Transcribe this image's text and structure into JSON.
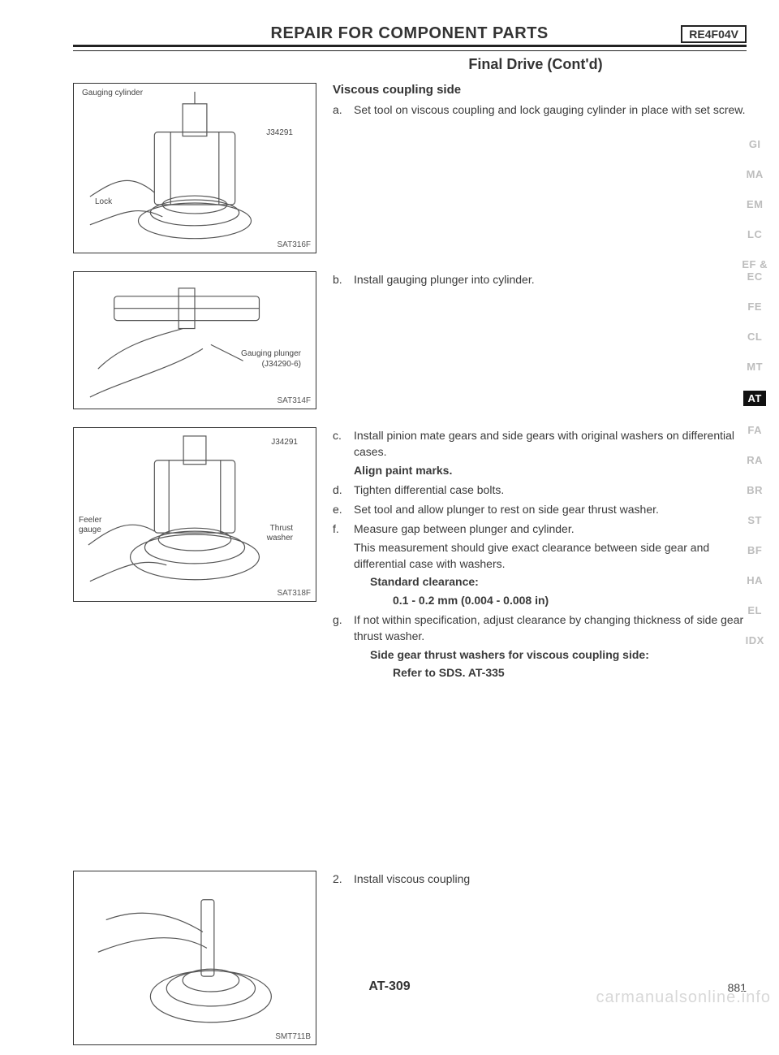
{
  "header": {
    "title": "REPAIR FOR COMPONENT PARTS",
    "model": "RE4F04V",
    "subtitle": "Final Drive (Cont'd)"
  },
  "section_heading": "Viscous coupling side",
  "steps": {
    "a": "Set tool on viscous coupling and lock gauging cylinder in place with set screw.",
    "b": "Install gauging plunger into cylinder.",
    "c": "Install pinion mate gears and side gears with original washers on differential cases.",
    "c_bold": "Align paint marks.",
    "d": "Tighten differential case bolts.",
    "e": "Set tool and allow plunger to rest on side gear thrust washer.",
    "f": "Measure gap between plunger and cylinder.",
    "f_note": "This measurement should give exact clearance between side gear and differential case with washers.",
    "f_spec_label": "Standard clearance:",
    "f_spec_value": "0.1 - 0.2 mm (0.004 - 0.008 in)",
    "g": "If not within specification, adjust clearance by changing thickness of side gear thrust washer.",
    "g_spec_label": "Side gear thrust washers for viscous coupling side:",
    "g_spec_value": "Refer to SDS. AT-335",
    "step2": "Install viscous coupling"
  },
  "figures": {
    "fig1": {
      "labels": {
        "top": "Gauging cylinder",
        "tool": "J34291",
        "lock": "Lock"
      },
      "code": "SAT316F"
    },
    "fig2": {
      "labels": {
        "plunger": "Gauging plunger",
        "plunger_sub": "(J34290-6)"
      },
      "code": "SAT314F"
    },
    "fig3": {
      "labels": {
        "tool": "J34291",
        "feeler": "Feeler",
        "gauge": "gauge",
        "thrust": "Thrust",
        "washer": "washer"
      },
      "code": "SAT318F"
    },
    "fig4": {
      "code": "SMT711B"
    }
  },
  "side_tabs": [
    "GI",
    "MA",
    "EM",
    "LC",
    "EF &\nEC",
    "FE",
    "CL",
    "MT",
    "AT",
    "FA",
    "RA",
    "BR",
    "ST",
    "BF",
    "HA",
    "EL",
    "IDX"
  ],
  "active_tab_index": 8,
  "footer": {
    "center": "AT-309",
    "page": "881"
  },
  "watermark": "carmanualsonline.info"
}
